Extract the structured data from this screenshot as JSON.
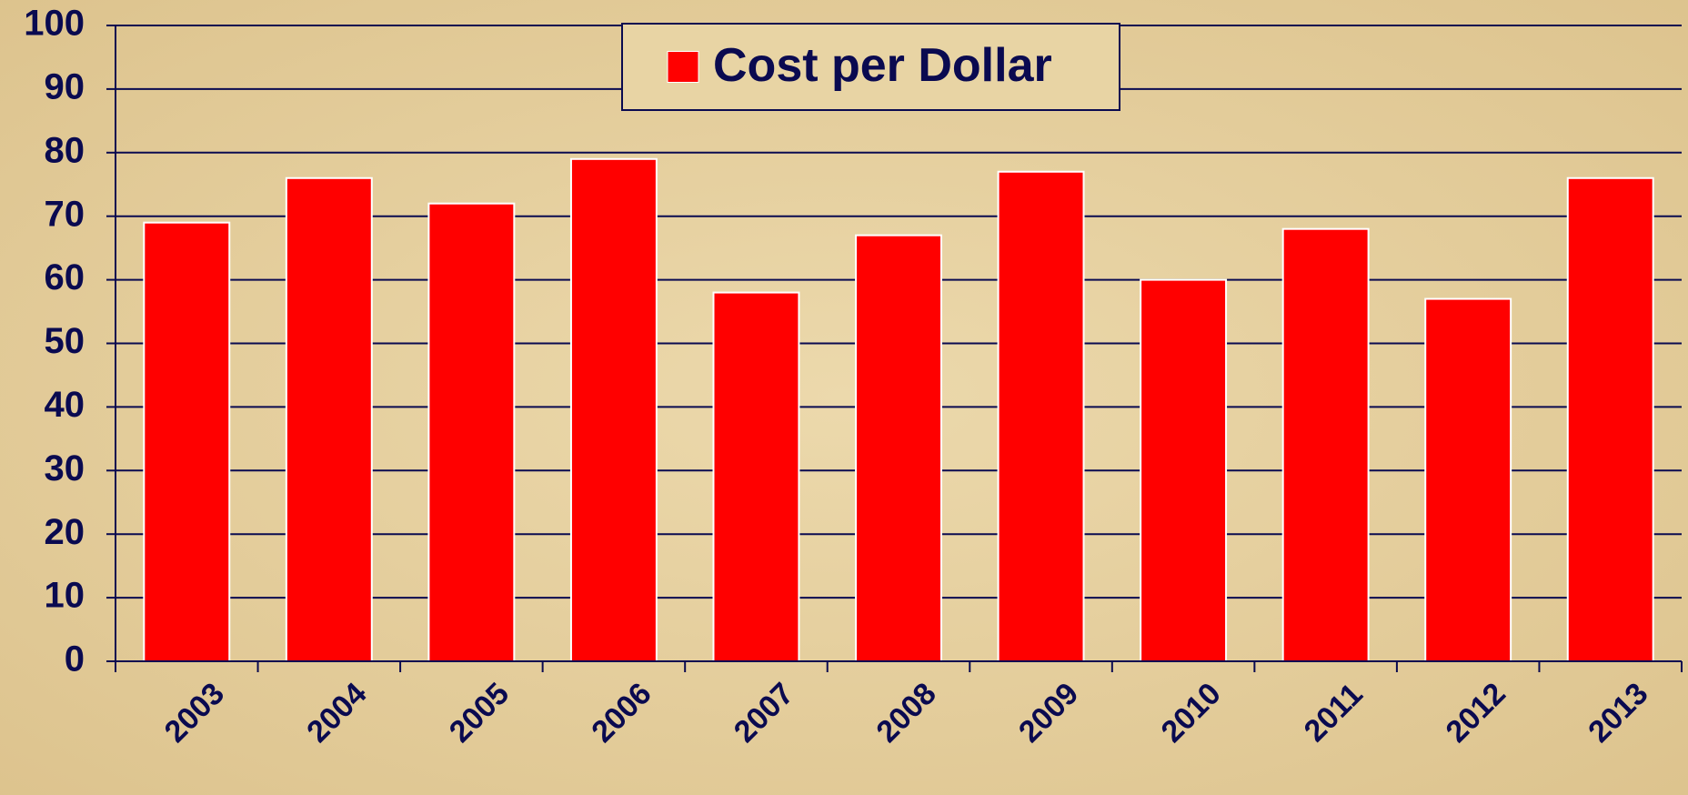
{
  "chart_data": {
    "type": "bar",
    "categories": [
      "2003",
      "2004",
      "2005",
      "2006",
      "2007",
      "2008",
      "2009",
      "2010",
      "2011",
      "2012",
      "2013"
    ],
    "series": [
      {
        "name": "Cost per Dollar",
        "color": "#ff0000",
        "values": [
          69,
          76,
          72,
          79,
          58,
          67,
          77,
          60,
          68,
          57,
          76
        ]
      }
    ],
    "ylim": [
      0,
      100
    ],
    "yticks": [
      0,
      10,
      20,
      30,
      40,
      50,
      60,
      70,
      80,
      90,
      100
    ],
    "grid": true,
    "legend": "top"
  }
}
